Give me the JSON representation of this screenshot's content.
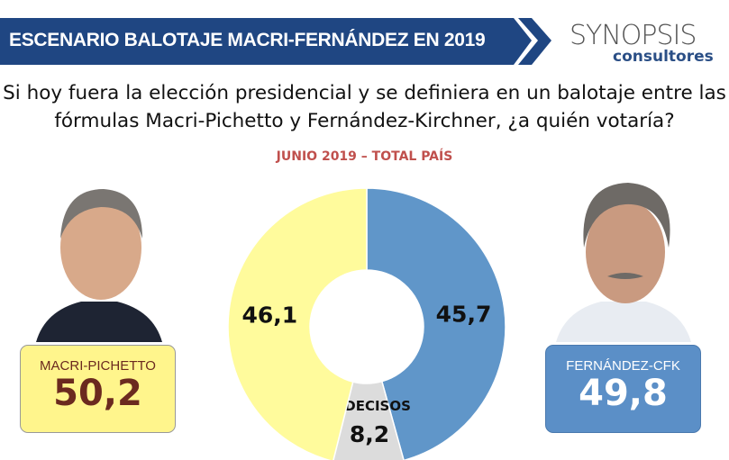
{
  "header": {
    "title": "ESCENARIO BALOTAJE MACRI-FERNÁNDEZ EN 2019",
    "logo_main": "SYNOPSIS",
    "logo_sub": "consultores"
  },
  "question": "Si hoy fuera la elección presidencial y se definiera en un balotaje entre las fórmulas Macri-Pichetto y Fernández-Kirchner, ¿a quién votaría?",
  "candidates": [
    {
      "name": "MACRI-PICHETTO",
      "value": "50,2",
      "color": "#FFF58C"
    },
    {
      "name": "FERNÁNDEZ-CFK",
      "value": "49,8",
      "color": "#5B8FC7"
    }
  ],
  "chart_data": {
    "type": "pie",
    "subtype": "donut",
    "title": "JUNIO 2019 – TOTAL PAÍS",
    "slices": [
      {
        "label": "",
        "value": 45.7,
        "display": "45,7",
        "color": "#6096C9"
      },
      {
        "label": "INDECISOS",
        "value": 8.2,
        "display": "8,2",
        "color": "#DCDCDC"
      },
      {
        "label": "",
        "value": 46.1,
        "display": "46,1",
        "color": "#FFFB9C"
      }
    ],
    "start": "12 o'clock, clockwise"
  }
}
